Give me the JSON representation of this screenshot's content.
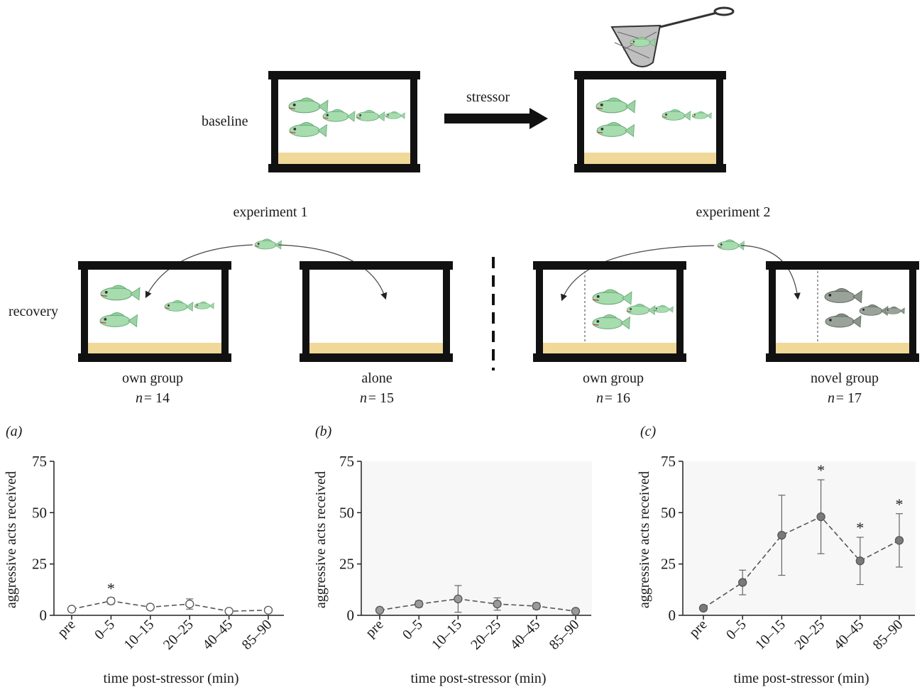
{
  "diagram": {
    "baseline_label": "baseline",
    "stressor_label": "stressor",
    "recovery_label": "recovery",
    "experiment1_label": "experiment 1",
    "experiment2_label": "experiment 2",
    "conditions": [
      {
        "name": "own group",
        "n_prefix": "n",
        "n_value": "= 14"
      },
      {
        "name": "alone",
        "n_prefix": "n",
        "n_value": "= 15"
      },
      {
        "name": "own group",
        "n_prefix": "n",
        "n_value": "= 16"
      },
      {
        "name": "novel group",
        "n_prefix": "n",
        "n_value": "= 17"
      }
    ],
    "colors": {
      "sand": "#f0d898",
      "fish": "#9fd9a8",
      "fish_dark": "#8a8a8a",
      "frame": "#111111"
    }
  },
  "chart_data": [
    {
      "panel": "(a)",
      "type": "line",
      "categories": [
        "pre",
        "0–5",
        "10–15",
        "20–25",
        "40–45",
        "85–90"
      ],
      "values": [
        3,
        7,
        4,
        5.5,
        2,
        2.5
      ],
      "error": [
        0.8,
        1.5,
        1.2,
        2.5,
        1,
        1
      ],
      "significant": [
        "",
        "*",
        "",
        "",
        "",
        ""
      ],
      "marker": "open",
      "xlabel": "time post-stressor (min)",
      "ylabel": "aggressive acts received",
      "yticks": [
        "0",
        "25",
        "50",
        "75"
      ],
      "ylim": [
        0,
        75
      ]
    },
    {
      "panel": "(b)",
      "type": "line",
      "categories": [
        "pre",
        "0–5",
        "10–15",
        "20–25",
        "40–45",
        "85–90"
      ],
      "values": [
        2.5,
        5.5,
        8,
        5.5,
        4.5,
        2
      ],
      "error": [
        1,
        1.5,
        6.5,
        3,
        1.5,
        1
      ],
      "significant": [
        "",
        "",
        "",
        "",
        "",
        ""
      ],
      "marker": "light",
      "xlabel": "time post-stressor (min)",
      "ylabel": "aggressive acts received",
      "yticks": [
        "0",
        "25",
        "50",
        "75"
      ],
      "ylim": [
        0,
        75
      ]
    },
    {
      "panel": "(c)",
      "type": "line",
      "categories": [
        "pre",
        "0–5",
        "10–15",
        "20–25",
        "40–45",
        "85–90"
      ],
      "values": [
        3.5,
        16,
        39,
        48,
        26.5,
        36.5
      ],
      "error": [
        1,
        6,
        19.5,
        18,
        11.5,
        13
      ],
      "significant": [
        "",
        "",
        "",
        "*",
        "*",
        "*"
      ],
      "marker": "dark",
      "xlabel": "time post-stressor (min)",
      "ylabel": "aggressive acts received",
      "yticks": [
        "0",
        "25",
        "50",
        "75"
      ],
      "ylim": [
        0,
        75
      ]
    }
  ]
}
